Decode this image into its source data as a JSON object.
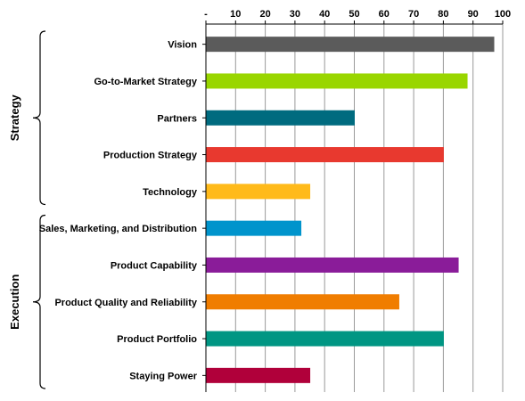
{
  "chart_data": {
    "type": "bar",
    "orientation": "horizontal",
    "categories": [
      "Vision",
      "Go-to-Market Strategy",
      "Partners",
      "Production Strategy",
      "Technology",
      "Sales, Marketing, and Distribution",
      "Product Capability",
      "Product Quality and Reliability",
      "Product Portfolio",
      "Staying Power"
    ],
    "values": [
      97,
      88,
      50,
      80,
      35,
      32,
      85,
      65,
      80,
      35
    ],
    "colors": [
      "#5b5b5b",
      "#99d600",
      "#006b7f",
      "#e8392f",
      "#ffba1a",
      "#0094cc",
      "#8a1c99",
      "#f07d00",
      "#009683",
      "#b0003a"
    ],
    "xlim": [
      0,
      100
    ],
    "xticks": [
      "-",
      "10",
      "20",
      "30",
      "40",
      "50",
      "60",
      "70",
      "80",
      "90",
      "100"
    ],
    "xaxis_position": "top",
    "grid": true,
    "groups": [
      {
        "name": "Strategy",
        "categories": [
          "Vision",
          "Go-to-Market Strategy",
          "Partners",
          "Production Strategy",
          "Technology"
        ]
      },
      {
        "name": "Execution",
        "categories": [
          "Sales, Marketing, and Distribution",
          "Product Capability",
          "Product Quality and Reliability",
          "Product Portfolio",
          "Staying Power"
        ]
      }
    ]
  }
}
